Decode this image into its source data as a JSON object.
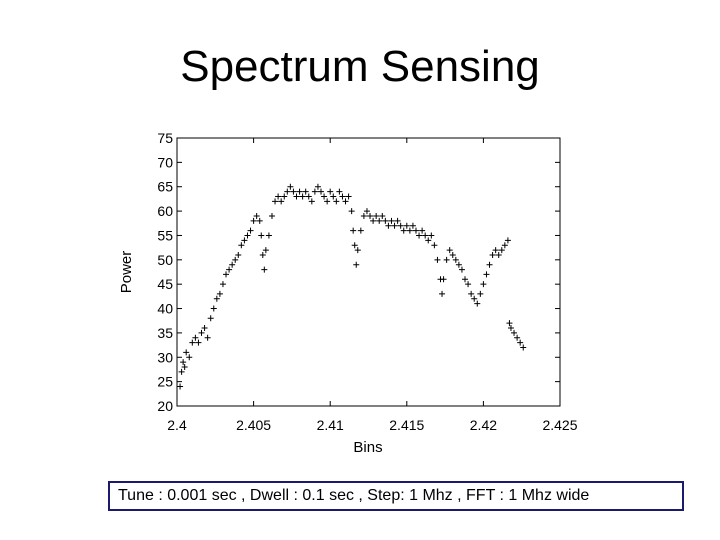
{
  "slide": {
    "title": "Spectrum Sensing",
    "footer": "Tune : 0.001 sec , Dwell : 0.1 sec , Step: 1 Mhz , FFT : 1 Mhz wide"
  },
  "chart_data": {
    "type": "scatter",
    "title": "",
    "xlabel": "Bins",
    "ylabel": "Power",
    "xlim": [
      2.4,
      2.425
    ],
    "ylim": [
      20,
      75
    ],
    "xticks": [
      "2.4",
      "2.405",
      "2.41",
      "2.415",
      "2.42",
      "2.425"
    ],
    "yticks": [
      "20",
      "25",
      "30",
      "35",
      "40",
      "45",
      "50",
      "55",
      "60",
      "65",
      "70",
      "75"
    ],
    "grid": false,
    "marker": "+",
    "color": "#000000",
    "series": [
      {
        "points": [
          [
            2.4002,
            24
          ],
          [
            2.4003,
            27
          ],
          [
            2.4004,
            29
          ],
          [
            2.4005,
            28
          ],
          [
            2.4006,
            31
          ],
          [
            2.4008,
            30
          ],
          [
            2.401,
            33
          ],
          [
            2.4012,
            34
          ],
          [
            2.4014,
            33
          ],
          [
            2.4016,
            35
          ],
          [
            2.4018,
            36
          ],
          [
            2.402,
            34
          ],
          [
            2.4022,
            38
          ],
          [
            2.4024,
            40
          ],
          [
            2.4026,
            42
          ],
          [
            2.4028,
            43
          ],
          [
            2.403,
            45
          ],
          [
            2.4032,
            47
          ],
          [
            2.4034,
            48
          ],
          [
            2.4036,
            49
          ],
          [
            2.4038,
            50
          ],
          [
            2.404,
            51
          ],
          [
            2.4042,
            53
          ],
          [
            2.4044,
            54
          ],
          [
            2.4046,
            55
          ],
          [
            2.4048,
            56
          ],
          [
            2.405,
            58
          ],
          [
            2.4052,
            59
          ],
          [
            2.4054,
            58
          ],
          [
            2.4055,
            55
          ],
          [
            2.4056,
            51
          ],
          [
            2.4057,
            48
          ],
          [
            2.4058,
            52
          ],
          [
            2.406,
            55
          ],
          [
            2.4062,
            59
          ],
          [
            2.4064,
            62
          ],
          [
            2.4066,
            63
          ],
          [
            2.4068,
            62
          ],
          [
            2.407,
            63
          ],
          [
            2.4072,
            64
          ],
          [
            2.4074,
            65
          ],
          [
            2.4076,
            64
          ],
          [
            2.4078,
            63
          ],
          [
            2.408,
            64
          ],
          [
            2.4082,
            63
          ],
          [
            2.4084,
            64
          ],
          [
            2.4086,
            63
          ],
          [
            2.4088,
            62
          ],
          [
            2.409,
            64
          ],
          [
            2.4092,
            65
          ],
          [
            2.4094,
            64
          ],
          [
            2.4096,
            63
          ],
          [
            2.4098,
            62
          ],
          [
            2.41,
            64
          ],
          [
            2.4102,
            63
          ],
          [
            2.4104,
            62
          ],
          [
            2.4106,
            64
          ],
          [
            2.4108,
            63
          ],
          [
            2.411,
            62
          ],
          [
            2.4112,
            63
          ],
          [
            2.4114,
            60
          ],
          [
            2.4115,
            56
          ],
          [
            2.4116,
            53
          ],
          [
            2.4117,
            49
          ],
          [
            2.4118,
            52
          ],
          [
            2.412,
            56
          ],
          [
            2.4122,
            59
          ],
          [
            2.4124,
            60
          ],
          [
            2.4126,
            59
          ],
          [
            2.4128,
            58
          ],
          [
            2.413,
            59
          ],
          [
            2.4132,
            58
          ],
          [
            2.4134,
            59
          ],
          [
            2.4136,
            58
          ],
          [
            2.4138,
            57
          ],
          [
            2.414,
            58
          ],
          [
            2.4142,
            57
          ],
          [
            2.4144,
            58
          ],
          [
            2.4146,
            57
          ],
          [
            2.4148,
            56
          ],
          [
            2.415,
            57
          ],
          [
            2.4152,
            56
          ],
          [
            2.4154,
            57
          ],
          [
            2.4156,
            56
          ],
          [
            2.4158,
            55
          ],
          [
            2.416,
            56
          ],
          [
            2.4162,
            55
          ],
          [
            2.4164,
            54
          ],
          [
            2.4166,
            55
          ],
          [
            2.4168,
            53
          ],
          [
            2.417,
            50
          ],
          [
            2.4172,
            46
          ],
          [
            2.4173,
            43
          ],
          [
            2.4174,
            46
          ],
          [
            2.4176,
            50
          ],
          [
            2.4178,
            52
          ],
          [
            2.418,
            51
          ],
          [
            2.4182,
            50
          ],
          [
            2.4184,
            49
          ],
          [
            2.4186,
            48
          ],
          [
            2.4188,
            46
          ],
          [
            2.419,
            45
          ],
          [
            2.4192,
            43
          ],
          [
            2.4194,
            42
          ],
          [
            2.4196,
            41
          ],
          [
            2.4198,
            43
          ],
          [
            2.42,
            45
          ],
          [
            2.4202,
            47
          ],
          [
            2.4204,
            49
          ],
          [
            2.4206,
            51
          ],
          [
            2.4208,
            52
          ],
          [
            2.421,
            51
          ],
          [
            2.4212,
            52
          ],
          [
            2.4214,
            53
          ],
          [
            2.4216,
            54
          ],
          [
            2.4217,
            37
          ],
          [
            2.4218,
            36
          ],
          [
            2.422,
            35
          ],
          [
            2.4222,
            34
          ],
          [
            2.4224,
            33
          ],
          [
            2.4226,
            32
          ]
        ]
      }
    ]
  }
}
